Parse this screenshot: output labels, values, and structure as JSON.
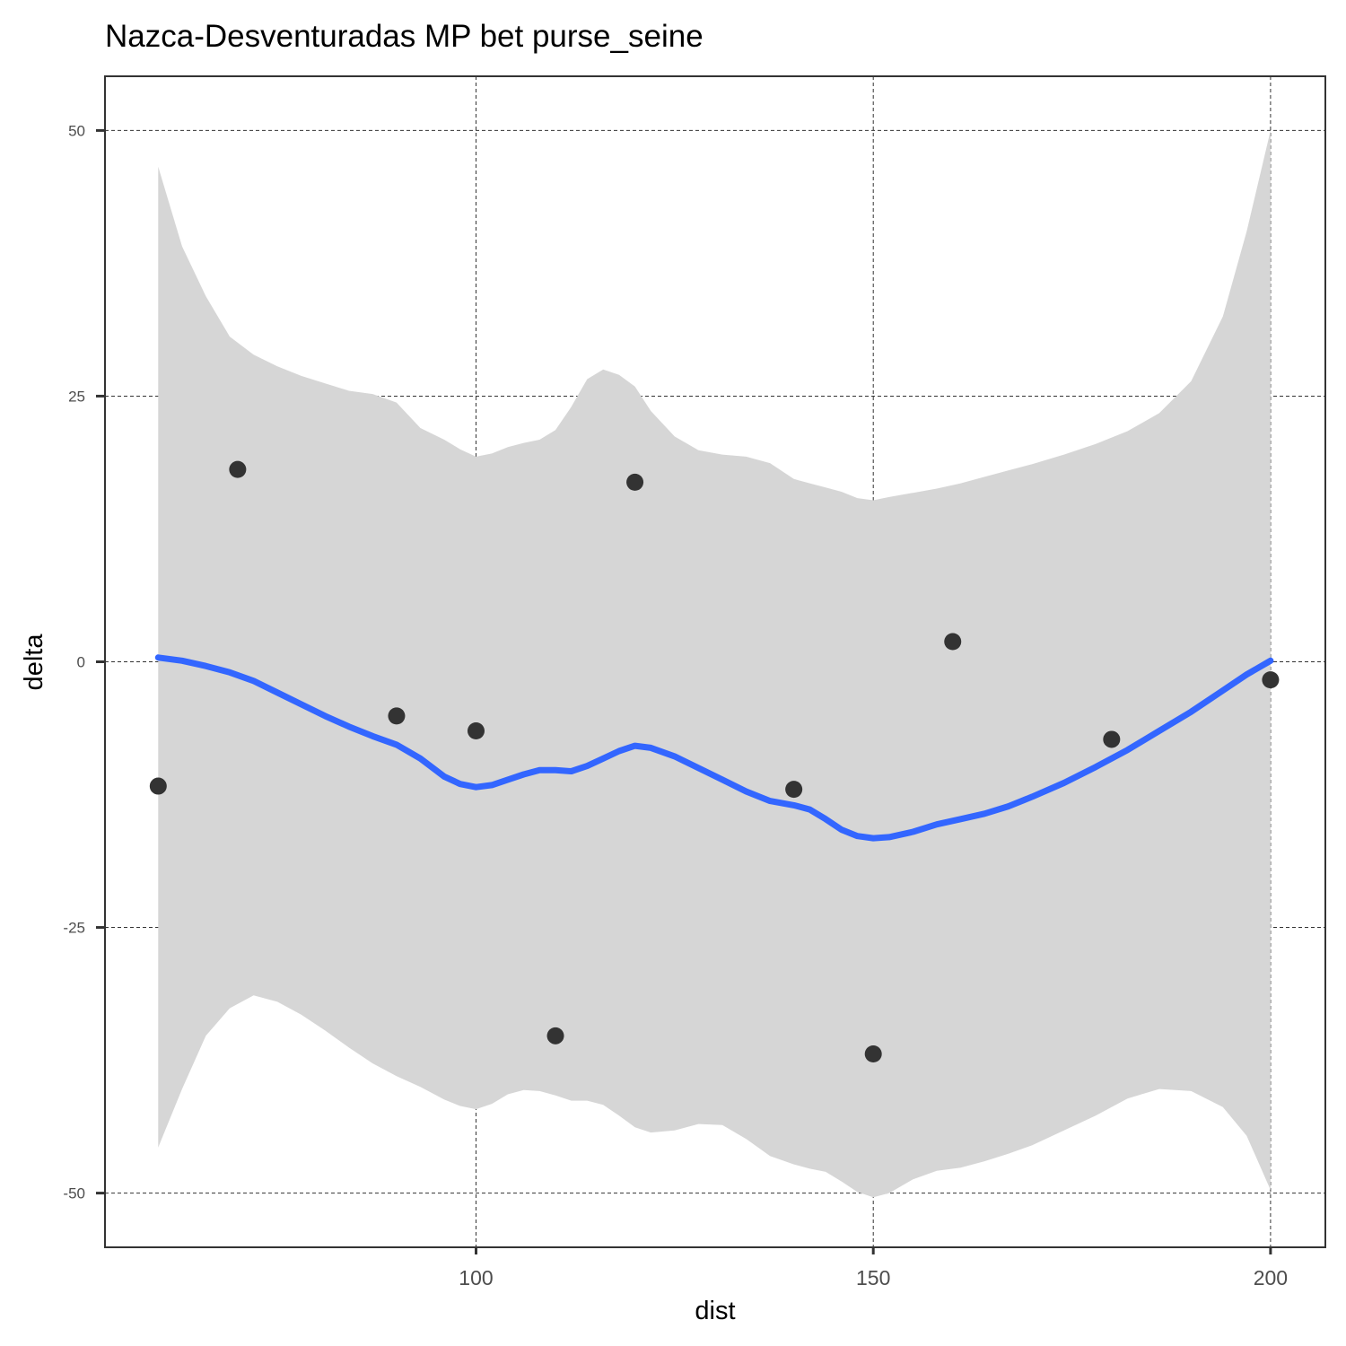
{
  "chart_data": {
    "type": "scatter",
    "title": "Nazca-Desventuradas MP bet purse_seine",
    "xlabel": "dist",
    "ylabel": "delta",
    "xlim": [
      53.3,
      206.9
    ],
    "ylim": [
      -55.1,
      55.1
    ],
    "x_ticks": [
      100,
      150,
      200
    ],
    "y_ticks": [
      -50,
      -25,
      0,
      25,
      50
    ],
    "grid": true,
    "legend": "none",
    "points": {
      "x": [
        60,
        70,
        90,
        100,
        110,
        120,
        140,
        150,
        160,
        180,
        200
      ],
      "y": [
        -11.7,
        18.1,
        -5.1,
        -6.5,
        -35.2,
        16.9,
        -12,
        -36.9,
        1.9,
        -7.3,
        -1.7
      ]
    },
    "smooth": {
      "x": [
        60,
        63,
        66,
        69,
        72,
        75,
        78,
        81,
        84,
        87,
        90,
        93,
        96,
        98,
        100,
        102,
        104,
        106,
        108,
        110,
        112,
        114,
        116,
        118,
        120,
        122,
        125,
        128,
        131,
        134,
        137,
        140,
        142,
        144,
        146,
        148,
        150,
        152,
        155,
        158,
        161,
        164,
        167,
        170,
        174,
        178,
        182,
        186,
        190,
        194,
        197,
        200
      ],
      "y": [
        0.4,
        0.1,
        -0.4,
        -1.0,
        -1.8,
        -2.9,
        -4.0,
        -5.1,
        -6.1,
        -7.0,
        -7.8,
        -9.1,
        -10.8,
        -11.5,
        -11.8,
        -11.6,
        -11.1,
        -10.6,
        -10.2,
        -10.2,
        -10.3,
        -9.8,
        -9.1,
        -8.4,
        -7.9,
        -8.1,
        -8.9,
        -10.0,
        -11.1,
        -12.2,
        -13.1,
        -13.5,
        -13.9,
        -14.8,
        -15.8,
        -16.4,
        -16.6,
        -16.5,
        -16.0,
        -15.3,
        -14.8,
        -14.3,
        -13.6,
        -12.7,
        -11.4,
        -9.9,
        -8.3,
        -6.5,
        -4.7,
        -2.7,
        -1.2,
        0.1
      ]
    },
    "ci_upper": [
      46.6,
      39.1,
      34.4,
      30.6,
      28.9,
      27.8,
      26.9,
      26.2,
      25.5,
      25.2,
      24.4,
      22.0,
      20.9,
      20.0,
      19.3,
      19.6,
      20.2,
      20.6,
      20.9,
      21.8,
      24.0,
      26.6,
      27.5,
      27.0,
      25.9,
      23.6,
      21.2,
      19.9,
      19.5,
      19.3,
      18.7,
      17.2,
      16.8,
      16.4,
      16.0,
      15.4,
      15.2,
      15.5,
      15.9,
      16.3,
      16.8,
      17.4,
      18.0,
      18.6,
      19.5,
      20.5,
      21.7,
      23.4,
      26.4,
      32.5,
      40.5,
      50.0
    ],
    "ci_lower": [
      -45.7,
      -40.2,
      -35.2,
      -32.6,
      -31.4,
      -32.0,
      -33.2,
      -34.7,
      -36.3,
      -37.8,
      -39.0,
      -40.0,
      -41.2,
      -41.8,
      -42.1,
      -41.6,
      -40.7,
      -40.3,
      -40.4,
      -40.8,
      -41.3,
      -41.3,
      -41.7,
      -42.7,
      -43.8,
      -44.3,
      -44.1,
      -43.5,
      -43.6,
      -44.9,
      -46.5,
      -47.3,
      -47.7,
      -48.0,
      -48.9,
      -49.9,
      -50.4,
      -50.0,
      -48.7,
      -47.9,
      -47.6,
      -47.0,
      -46.3,
      -45.5,
      -44.1,
      -42.7,
      -41.1,
      -40.2,
      -40.4,
      -41.9,
      -44.6,
      -49.7
    ]
  },
  "colors": {
    "points": "#333333",
    "smooth_line": "#3366ff",
    "ribbon": "#d6d6d6",
    "grid": "#333333"
  }
}
